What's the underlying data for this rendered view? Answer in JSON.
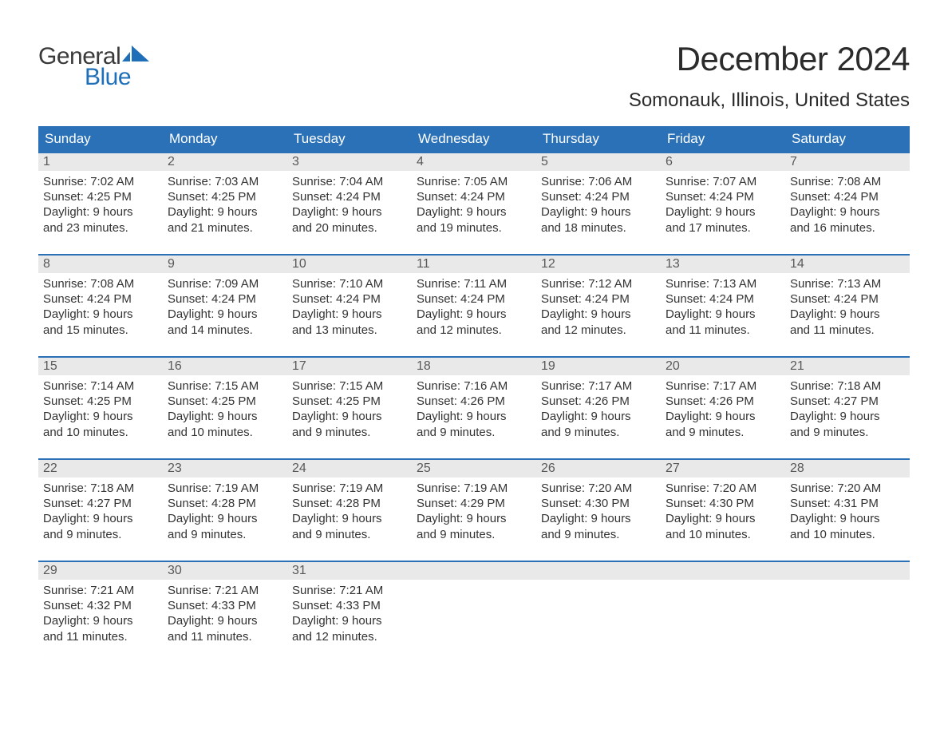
{
  "brand": {
    "word1": "General",
    "word2": "Blue",
    "accent_color": "#1e6fb8"
  },
  "title": "December 2024",
  "location": "Somonauk, Illinois, United States",
  "header_bg": "#2a71b8",
  "header_fg": "#ffffff",
  "daynum_bg": "#e9e9e9",
  "week_border": "#2a71b8",
  "day_names": [
    "Sunday",
    "Monday",
    "Tuesday",
    "Wednesday",
    "Thursday",
    "Friday",
    "Saturday"
  ],
  "weeks": [
    [
      {
        "n": "1",
        "sr": "Sunrise: 7:02 AM",
        "ss": "Sunset: 4:25 PM",
        "d1": "Daylight: 9 hours",
        "d2": "and 23 minutes."
      },
      {
        "n": "2",
        "sr": "Sunrise: 7:03 AM",
        "ss": "Sunset: 4:25 PM",
        "d1": "Daylight: 9 hours",
        "d2": "and 21 minutes."
      },
      {
        "n": "3",
        "sr": "Sunrise: 7:04 AM",
        "ss": "Sunset: 4:24 PM",
        "d1": "Daylight: 9 hours",
        "d2": "and 20 minutes."
      },
      {
        "n": "4",
        "sr": "Sunrise: 7:05 AM",
        "ss": "Sunset: 4:24 PM",
        "d1": "Daylight: 9 hours",
        "d2": "and 19 minutes."
      },
      {
        "n": "5",
        "sr": "Sunrise: 7:06 AM",
        "ss": "Sunset: 4:24 PM",
        "d1": "Daylight: 9 hours",
        "d2": "and 18 minutes."
      },
      {
        "n": "6",
        "sr": "Sunrise: 7:07 AM",
        "ss": "Sunset: 4:24 PM",
        "d1": "Daylight: 9 hours",
        "d2": "and 17 minutes."
      },
      {
        "n": "7",
        "sr": "Sunrise: 7:08 AM",
        "ss": "Sunset: 4:24 PM",
        "d1": "Daylight: 9 hours",
        "d2": "and 16 minutes."
      }
    ],
    [
      {
        "n": "8",
        "sr": "Sunrise: 7:08 AM",
        "ss": "Sunset: 4:24 PM",
        "d1": "Daylight: 9 hours",
        "d2": "and 15 minutes."
      },
      {
        "n": "9",
        "sr": "Sunrise: 7:09 AM",
        "ss": "Sunset: 4:24 PM",
        "d1": "Daylight: 9 hours",
        "d2": "and 14 minutes."
      },
      {
        "n": "10",
        "sr": "Sunrise: 7:10 AM",
        "ss": "Sunset: 4:24 PM",
        "d1": "Daylight: 9 hours",
        "d2": "and 13 minutes."
      },
      {
        "n": "11",
        "sr": "Sunrise: 7:11 AM",
        "ss": "Sunset: 4:24 PM",
        "d1": "Daylight: 9 hours",
        "d2": "and 12 minutes."
      },
      {
        "n": "12",
        "sr": "Sunrise: 7:12 AM",
        "ss": "Sunset: 4:24 PM",
        "d1": "Daylight: 9 hours",
        "d2": "and 12 minutes."
      },
      {
        "n": "13",
        "sr": "Sunrise: 7:13 AM",
        "ss": "Sunset: 4:24 PM",
        "d1": "Daylight: 9 hours",
        "d2": "and 11 minutes."
      },
      {
        "n": "14",
        "sr": "Sunrise: 7:13 AM",
        "ss": "Sunset: 4:24 PM",
        "d1": "Daylight: 9 hours",
        "d2": "and 11 minutes."
      }
    ],
    [
      {
        "n": "15",
        "sr": "Sunrise: 7:14 AM",
        "ss": "Sunset: 4:25 PM",
        "d1": "Daylight: 9 hours",
        "d2": "and 10 minutes."
      },
      {
        "n": "16",
        "sr": "Sunrise: 7:15 AM",
        "ss": "Sunset: 4:25 PM",
        "d1": "Daylight: 9 hours",
        "d2": "and 10 minutes."
      },
      {
        "n": "17",
        "sr": "Sunrise: 7:15 AM",
        "ss": "Sunset: 4:25 PM",
        "d1": "Daylight: 9 hours",
        "d2": "and 9 minutes."
      },
      {
        "n": "18",
        "sr": "Sunrise: 7:16 AM",
        "ss": "Sunset: 4:26 PM",
        "d1": "Daylight: 9 hours",
        "d2": "and 9 minutes."
      },
      {
        "n": "19",
        "sr": "Sunrise: 7:17 AM",
        "ss": "Sunset: 4:26 PM",
        "d1": "Daylight: 9 hours",
        "d2": "and 9 minutes."
      },
      {
        "n": "20",
        "sr": "Sunrise: 7:17 AM",
        "ss": "Sunset: 4:26 PM",
        "d1": "Daylight: 9 hours",
        "d2": "and 9 minutes."
      },
      {
        "n": "21",
        "sr": "Sunrise: 7:18 AM",
        "ss": "Sunset: 4:27 PM",
        "d1": "Daylight: 9 hours",
        "d2": "and 9 minutes."
      }
    ],
    [
      {
        "n": "22",
        "sr": "Sunrise: 7:18 AM",
        "ss": "Sunset: 4:27 PM",
        "d1": "Daylight: 9 hours",
        "d2": "and 9 minutes."
      },
      {
        "n": "23",
        "sr": "Sunrise: 7:19 AM",
        "ss": "Sunset: 4:28 PM",
        "d1": "Daylight: 9 hours",
        "d2": "and 9 minutes."
      },
      {
        "n": "24",
        "sr": "Sunrise: 7:19 AM",
        "ss": "Sunset: 4:28 PM",
        "d1": "Daylight: 9 hours",
        "d2": "and 9 minutes."
      },
      {
        "n": "25",
        "sr": "Sunrise: 7:19 AM",
        "ss": "Sunset: 4:29 PM",
        "d1": "Daylight: 9 hours",
        "d2": "and 9 minutes."
      },
      {
        "n": "26",
        "sr": "Sunrise: 7:20 AM",
        "ss": "Sunset: 4:30 PM",
        "d1": "Daylight: 9 hours",
        "d2": "and 9 minutes."
      },
      {
        "n": "27",
        "sr": "Sunrise: 7:20 AM",
        "ss": "Sunset: 4:30 PM",
        "d1": "Daylight: 9 hours",
        "d2": "and 10 minutes."
      },
      {
        "n": "28",
        "sr": "Sunrise: 7:20 AM",
        "ss": "Sunset: 4:31 PM",
        "d1": "Daylight: 9 hours",
        "d2": "and 10 minutes."
      }
    ],
    [
      {
        "n": "29",
        "sr": "Sunrise: 7:21 AM",
        "ss": "Sunset: 4:32 PM",
        "d1": "Daylight: 9 hours",
        "d2": "and 11 minutes."
      },
      {
        "n": "30",
        "sr": "Sunrise: 7:21 AM",
        "ss": "Sunset: 4:33 PM",
        "d1": "Daylight: 9 hours",
        "d2": "and 11 minutes."
      },
      {
        "n": "31",
        "sr": "Sunrise: 7:21 AM",
        "ss": "Sunset: 4:33 PM",
        "d1": "Daylight: 9 hours",
        "d2": "and 12 minutes."
      },
      {
        "empty": true
      },
      {
        "empty": true
      },
      {
        "empty": true
      },
      {
        "empty": true
      }
    ]
  ]
}
